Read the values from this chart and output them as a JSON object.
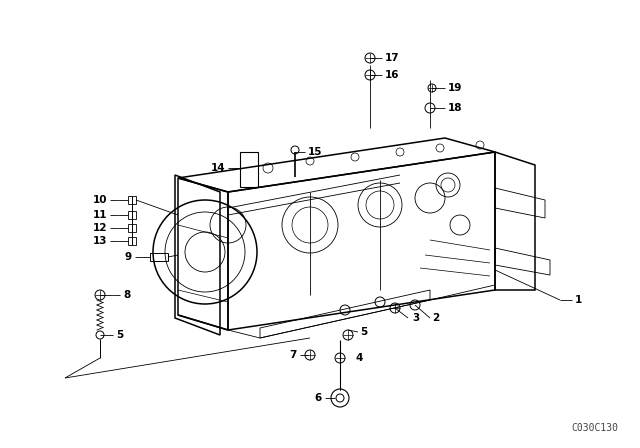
{
  "background_color": "#ffffff",
  "line_color": "#000000",
  "watermark": "C030C130",
  "watermark_fontsize": 7,
  "label_fontsize": 7.5,
  "lw_main": 1.1,
  "lw_thin": 0.6,
  "lw_detail": 0.5
}
